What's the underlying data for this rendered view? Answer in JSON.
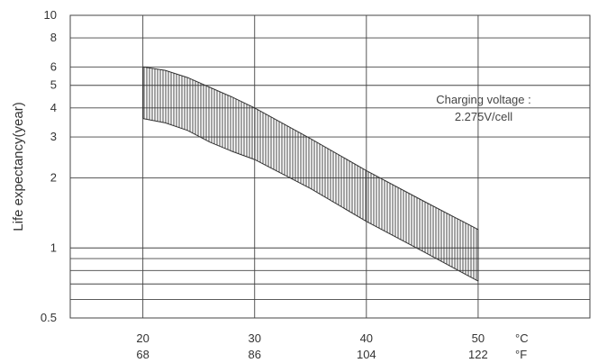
{
  "chart_data": {
    "type": "area",
    "title": "",
    "xlabel": "",
    "ylabel": "Life expectancy(year)",
    "yscale": "log",
    "ylim": [
      0.5,
      10
    ],
    "xlim": [
      13.5,
      60
    ],
    "grid": true,
    "y_ticks": [
      0.5,
      1,
      2,
      3,
      4,
      5,
      6,
      8,
      10
    ],
    "y_tick_labels": [
      "0.5",
      "1",
      "2",
      "3",
      "4",
      "5",
      "6",
      "8",
      "10"
    ],
    "y_minor_gridlines": [
      0.6,
      0.7,
      0.8,
      0.9
    ],
    "x_ticks": [
      {
        "c": 20,
        "c_label": "20",
        "f_label": "68"
      },
      {
        "c": 30,
        "c_label": "30",
        "f_label": "86"
      },
      {
        "c": 40,
        "c_label": "40",
        "f_label": "104"
      },
      {
        "c": 50,
        "c_label": "50",
        "f_label": "122"
      }
    ],
    "x_unit_c": "°C",
    "x_unit_f": "°F",
    "annotation": [
      "Charging voltage :",
      "2.275V/cell"
    ],
    "band": {
      "x": [
        20,
        22,
        24,
        26,
        28,
        30,
        35,
        40,
        45,
        50
      ],
      "upper": [
        6.0,
        5.8,
        5.4,
        4.9,
        4.45,
        4.0,
        2.95,
        2.15,
        1.6,
        1.2
      ],
      "lower": [
        3.6,
        3.45,
        3.2,
        2.85,
        2.6,
        2.4,
        1.8,
        1.3,
        0.97,
        0.72
      ]
    },
    "band_color": "#333333",
    "grid_color": "#444444"
  }
}
